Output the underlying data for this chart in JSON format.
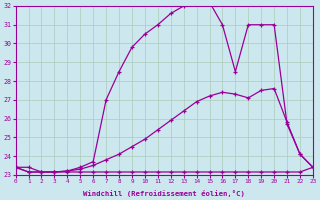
{
  "xlabel": "Windchill (Refroidissement éolien,°C)",
  "xlim": [
    0,
    23
  ],
  "ylim": [
    23,
    32
  ],
  "yticks": [
    23,
    24,
    25,
    26,
    27,
    28,
    29,
    30,
    31,
    32
  ],
  "xticks": [
    0,
    1,
    2,
    3,
    4,
    5,
    6,
    7,
    8,
    9,
    10,
    11,
    12,
    13,
    14,
    15,
    16,
    17,
    18,
    19,
    20,
    21,
    22,
    23
  ],
  "bg_color": "#cce8ee",
  "line_color": "#990099",
  "grid_color": "#aaccbb",
  "curve1": {
    "x": [
      0,
      1,
      2,
      3,
      4,
      5,
      6,
      7,
      8,
      9,
      10,
      11,
      12,
      13,
      14,
      15,
      16,
      17,
      18,
      19,
      20,
      21,
      22,
      23
    ],
    "y": [
      23.4,
      23.4,
      23.15,
      23.15,
      23.15,
      23.15,
      23.15,
      23.15,
      23.15,
      23.15,
      23.15,
      23.15,
      23.15,
      23.15,
      23.15,
      23.15,
      23.15,
      23.15,
      23.15,
      23.15,
      23.15,
      23.15,
      23.15,
      23.4
    ]
  },
  "curve2": {
    "x": [
      0,
      1,
      2,
      3,
      4,
      5,
      6,
      7,
      8,
      9,
      10,
      11,
      12,
      13,
      14,
      15,
      16,
      17,
      18,
      19,
      20,
      21,
      22,
      23
    ],
    "y": [
      23.4,
      23.15,
      23.15,
      23.15,
      23.2,
      23.3,
      23.5,
      23.8,
      24.1,
      24.5,
      24.9,
      25.4,
      25.9,
      26.4,
      26.9,
      27.2,
      27.4,
      27.3,
      27.1,
      27.5,
      27.6,
      25.8,
      24.1,
      23.4
    ]
  },
  "curve3": {
    "x": [
      0,
      1,
      2,
      3,
      4,
      5,
      6,
      7,
      8,
      9,
      10,
      11,
      12,
      13,
      14,
      15,
      16,
      17,
      18,
      19,
      20,
      21,
      22,
      23
    ],
    "y": [
      23.4,
      23.15,
      23.15,
      23.15,
      23.2,
      23.4,
      23.7,
      27.0,
      28.5,
      29.8,
      30.5,
      31.0,
      31.6,
      32.0,
      32.2,
      32.2,
      31.0,
      28.5,
      31.0,
      31.0,
      31.0,
      25.7,
      24.1,
      23.4
    ]
  }
}
